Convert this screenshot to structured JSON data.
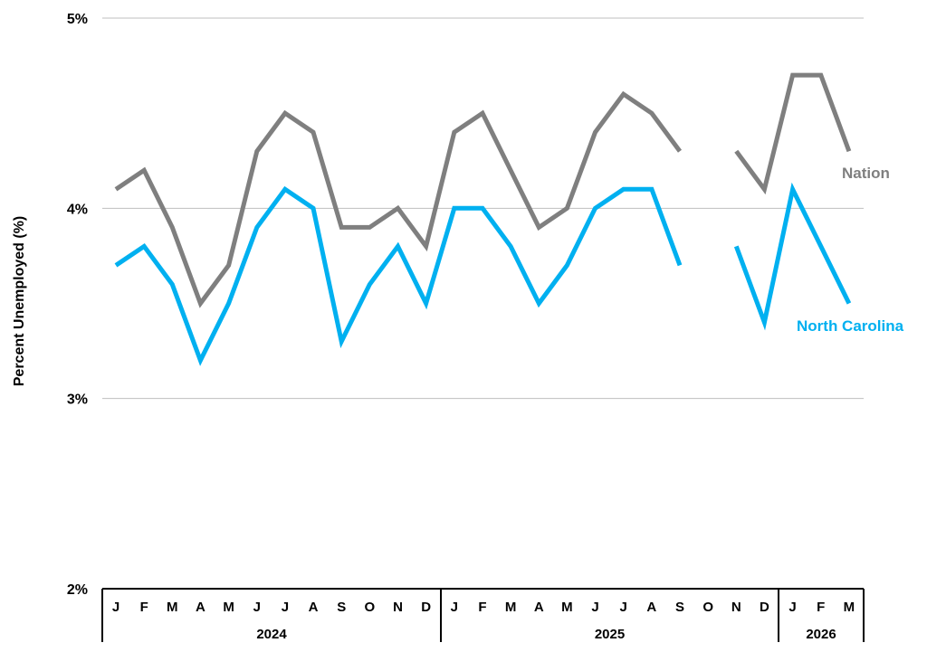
{
  "chart_data": {
    "type": "line",
    "title": "",
    "ylabel": "Percent Unemployed (%)",
    "xlabel": "",
    "ylim": [
      2,
      5
    ],
    "yticks": [
      2,
      3,
      4,
      5
    ],
    "ytick_labels": [
      "2%",
      "3%",
      "4%",
      "5%"
    ],
    "grid": true,
    "categories": [
      "J",
      "F",
      "M",
      "A",
      "M",
      "J",
      "J",
      "A",
      "S",
      "O",
      "N",
      "D",
      "J",
      "F",
      "M",
      "A",
      "M",
      "J",
      "J",
      "A",
      "S",
      "O",
      "N",
      "D",
      "J",
      "F",
      "M"
    ],
    "year_groups": [
      {
        "label": "2024",
        "start": 0,
        "end": 11
      },
      {
        "label": "2025",
        "start": 12,
        "end": 23
      },
      {
        "label": "2026",
        "start": 24,
        "end": 26
      }
    ],
    "series": [
      {
        "name": "Nation",
        "color": "#7f7f7f",
        "values": [
          4.1,
          4.2,
          3.9,
          3.5,
          3.7,
          4.3,
          4.5,
          4.4,
          3.9,
          3.9,
          4.0,
          3.8,
          4.4,
          4.5,
          4.2,
          3.9,
          4.0,
          4.4,
          4.6,
          4.5,
          4.3,
          null,
          4.3,
          4.1,
          4.7,
          4.7,
          4.3
        ]
      },
      {
        "name": "North Carolina",
        "color": "#00b0f0",
        "values": [
          3.7,
          3.8,
          3.6,
          3.2,
          3.5,
          3.9,
          4.1,
          4.0,
          3.3,
          3.6,
          3.8,
          3.5,
          4.0,
          4.0,
          3.8,
          3.5,
          3.7,
          4.0,
          4.1,
          4.1,
          3.7,
          null,
          3.8,
          3.4,
          4.1,
          3.8,
          3.5
        ]
      }
    ]
  }
}
